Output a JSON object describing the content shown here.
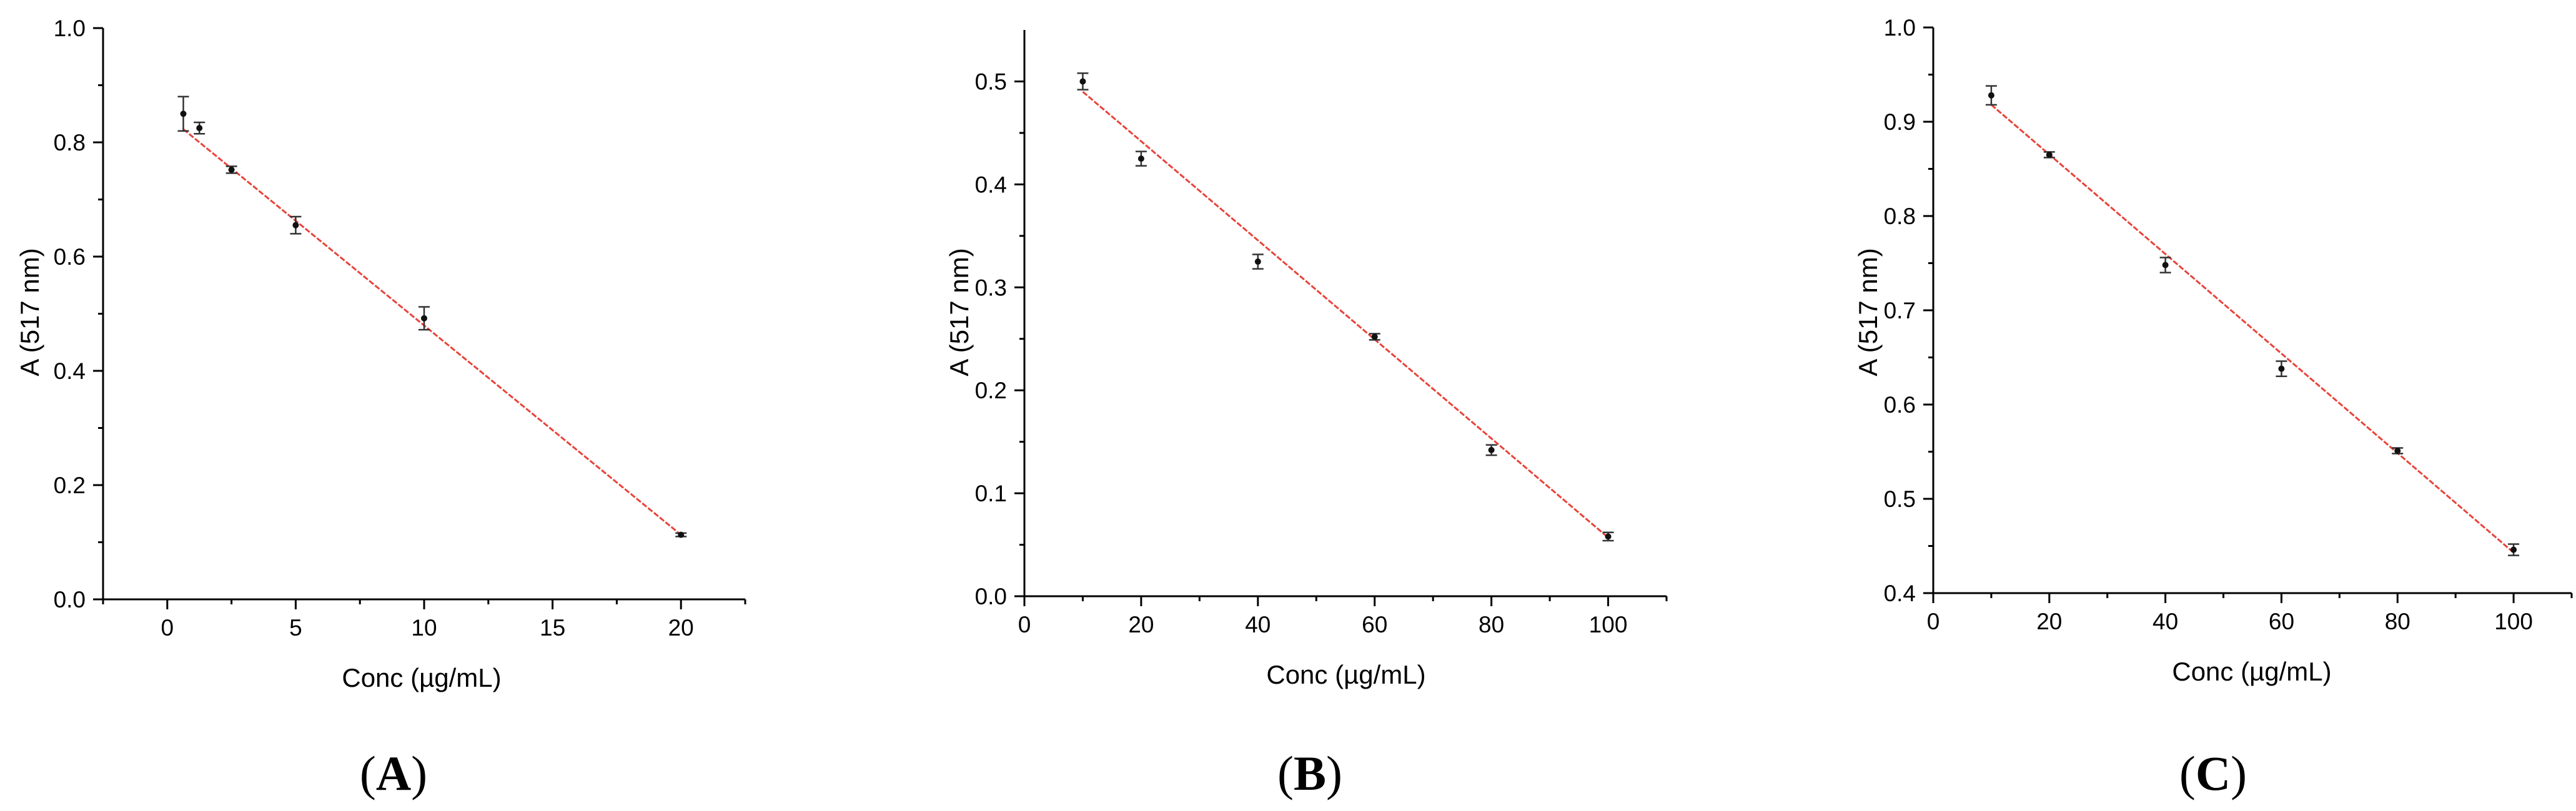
{
  "chart_data": [
    {
      "type": "scatter",
      "panel": "A",
      "xlabel": "Conc (µg/mL)",
      "ylabel": "A (517 nm)",
      "xlim": [
        -2.5,
        22.5
      ],
      "ylim": [
        0.0,
        1.0
      ],
      "xticks": [
        0,
        5,
        10,
        15,
        20
      ],
      "yticks": [
        0.0,
        0.2,
        0.4,
        0.6,
        0.8,
        1.0
      ],
      "xtick_labels": [
        "0",
        "5",
        "10",
        "15",
        "20"
      ],
      "ytick_labels": [
        "0.0",
        "0.2",
        "0.4",
        "0.6",
        "0.8",
        "1.0"
      ],
      "x": [
        0.625,
        1.25,
        2.5,
        5,
        10,
        20
      ],
      "y": [
        0.85,
        0.825,
        0.752,
        0.655,
        0.492,
        0.113
      ],
      "yerr": [
        0.03,
        0.01,
        0.006,
        0.015,
        0.02,
        0.003
      ],
      "fit": {
        "x": [
          0.625,
          20
        ],
        "y": [
          0.823,
          0.113
        ]
      }
    },
    {
      "type": "scatter",
      "panel": "B",
      "xlabel": "Conc (µg/mL)",
      "ylabel": "A (517 nm)",
      "xlim": [
        0,
        110
      ],
      "ylim": [
        0.0,
        0.55
      ],
      "xticks": [
        0,
        20,
        40,
        60,
        80,
        100
      ],
      "yticks": [
        0.0,
        0.1,
        0.2,
        0.3,
        0.4,
        0.5
      ],
      "xtick_labels": [
        "0",
        "20",
        "40",
        "60",
        "80",
        "100"
      ],
      "ytick_labels": [
        "0.0",
        "0.1",
        "0.2",
        "0.3",
        "0.4",
        "0.5"
      ],
      "x": [
        10,
        20,
        40,
        60,
        80,
        100
      ],
      "y": [
        0.5,
        0.425,
        0.325,
        0.252,
        0.142,
        0.058
      ],
      "yerr": [
        0.008,
        0.007,
        0.007,
        0.003,
        0.005,
        0.004
      ],
      "fit": {
        "x": [
          10,
          100
        ],
        "y": [
          0.49,
          0.057
        ]
      }
    },
    {
      "type": "scatter",
      "panel": "C",
      "xlabel": "Conc (µg/mL)",
      "ylabel": "A (517 nm)",
      "xlim": [
        0,
        110
      ],
      "ylim": [
        0.4,
        1.0
      ],
      "xticks": [
        0,
        20,
        40,
        60,
        80,
        100
      ],
      "yticks": [
        0.4,
        0.5,
        0.6,
        0.7,
        0.8,
        0.9,
        1.0
      ],
      "xtick_labels": [
        "0",
        "20",
        "40",
        "60",
        "80",
        "100"
      ],
      "ytick_labels": [
        "0.4",
        "0.5",
        "0.6",
        "0.7",
        "0.8",
        "0.9",
        "1.0"
      ],
      "x": [
        10,
        20,
        40,
        60,
        80,
        100
      ],
      "y": [
        0.928,
        0.865,
        0.748,
        0.638,
        0.551,
        0.446
      ],
      "yerr": [
        0.01,
        0.003,
        0.008,
        0.008,
        0.003,
        0.006
      ],
      "fit": {
        "x": [
          10,
          100
        ],
        "y": [
          0.918,
          0.443
        ]
      }
    }
  ],
  "panel_labels": [
    "A",
    "B",
    "C"
  ]
}
